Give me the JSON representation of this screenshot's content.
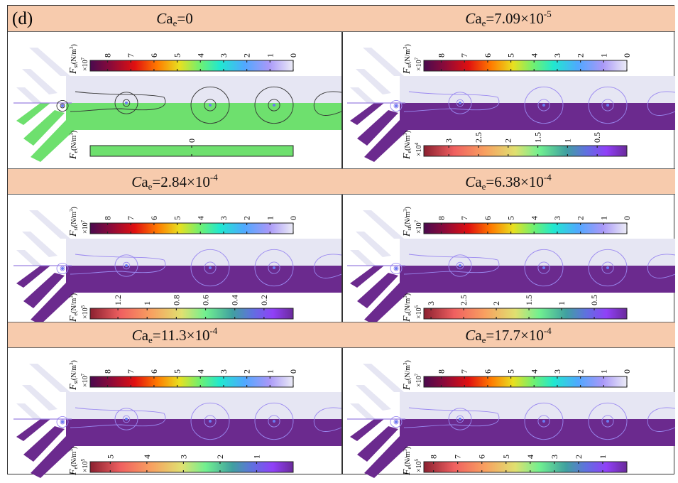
{
  "figure_label": "(d)",
  "colors": {
    "header_bg": "#f7cbad",
    "upper_fluid": "#e6e6f3",
    "lower_fluid_zero": "#6ee06e",
    "lower_fluid": "#6b2a8e"
  },
  "colorbar_st": {
    "symbol": "F",
    "sub": "st",
    "unit": "(N/m",
    "unit_sup": "3",
    "unit_close": ")",
    "scale": "×10",
    "scale_exp": "7",
    "ticks": [
      "8",
      "7",
      "6",
      "5",
      "4",
      "3",
      "2",
      "1",
      "0"
    ],
    "tick_values": [
      8,
      7,
      6,
      5,
      4,
      3,
      2,
      1,
      0
    ],
    "max": 8.75
  },
  "panels": [
    {
      "title": {
        "c": "C",
        "a": "a",
        "sub": "e",
        "val": "=0",
        "exp": ""
      },
      "fe": {
        "symbol": "F",
        "sub": "e",
        "unit": "(N/m",
        "unit_sup": "3",
        "unit_close": ")",
        "scale": "",
        "scale_exp": "",
        "ticks": [
          "0"
        ],
        "tick_values": [
          0
        ],
        "max": 0,
        "uniform": true
      }
    },
    {
      "title": {
        "c": "C",
        "a": "a",
        "sub": "e",
        "val": "=7.09×10",
        "exp": "-5"
      },
      "fe": {
        "symbol": "F",
        "sub": "e",
        "unit": "(N/m",
        "unit_sup": "3",
        "unit_close": ")",
        "scale": "×10",
        "scale_exp": "4",
        "ticks": [
          "3",
          "2.5",
          "2",
          "1.5",
          "1",
          "0.5"
        ],
        "tick_values": [
          3,
          2.5,
          2,
          1.5,
          1,
          0.5
        ],
        "max": 3.42
      }
    },
    {
      "title": {
        "c": "C",
        "a": "a",
        "sub": "e",
        "val": "=2.84×10",
        "exp": "-4"
      },
      "fe": {
        "symbol": "F",
        "sub": "e",
        "unit": "(N/m",
        "unit_sup": "3",
        "unit_close": ")",
        "scale": "×10",
        "scale_exp": "5",
        "ticks": [
          "1.2",
          "1",
          "0.8",
          "0.6",
          "0.4",
          "0.2"
        ],
        "tick_values": [
          1.2,
          1,
          0.8,
          0.6,
          0.4,
          0.2
        ],
        "max": 1.39
      }
    },
    {
      "title": {
        "c": "C",
        "a": "a",
        "sub": "e",
        "val": "=6.38×10",
        "exp": "-4"
      },
      "fe": {
        "symbol": "F",
        "sub": "e",
        "unit": "(N/m",
        "unit_sup": "3",
        "unit_close": ")",
        "scale": "×10",
        "scale_exp": "5",
        "ticks": [
          "3",
          "2.5",
          "2",
          "1.5",
          "1",
          "0.5"
        ],
        "tick_values": [
          3,
          2.5,
          2,
          1.5,
          1,
          0.5
        ],
        "max": 3.11
      }
    },
    {
      "title": {
        "c": "C",
        "a": "a",
        "sub": "e",
        "val": "=11.3×10",
        "exp": "-4"
      },
      "fe": {
        "symbol": "F",
        "sub": "e",
        "unit": "(N/m",
        "unit_sup": "3",
        "unit_close": ")",
        "scale": "×10",
        "scale_exp": "5",
        "ticks": [
          "5",
          "4",
          "3",
          "2",
          "1"
        ],
        "tick_values": [
          5,
          4,
          3,
          2,
          1
        ],
        "max": 5.55
      }
    },
    {
      "title": {
        "c": "C",
        "a": "a",
        "sub": "e",
        "val": "=17.7×10",
        "exp": "-4"
      },
      "fe": {
        "symbol": "F",
        "sub": "e",
        "unit": "(N/m",
        "unit_sup": "3",
        "unit_close": ")",
        "scale": "×10",
        "scale_exp": "5",
        "ticks": [
          "8",
          "7",
          "6",
          "5",
          "4",
          "3",
          "2",
          "1"
        ],
        "tick_values": [
          8,
          7,
          6,
          5,
          4,
          3,
          2,
          1
        ],
        "max": 8.4
      }
    }
  ]
}
